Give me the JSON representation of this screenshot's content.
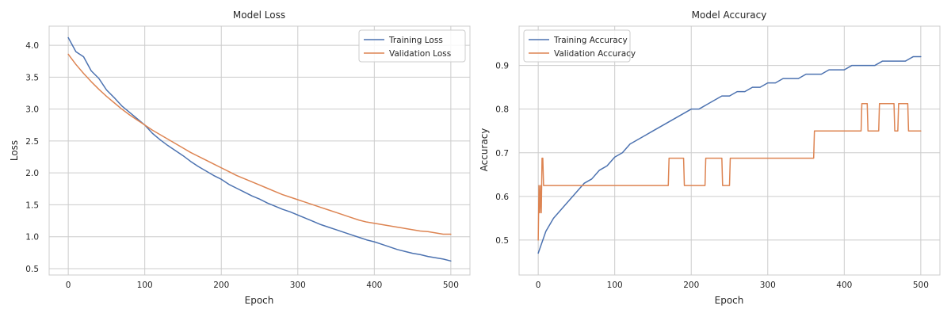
{
  "chart_data": [
    {
      "type": "line",
      "title": "Model Loss",
      "xlabel": "Epoch",
      "ylabel": "Loss",
      "xlim": [
        -25,
        525
      ],
      "ylim": [
        0.4,
        4.3
      ],
      "xticks": [
        0,
        100,
        200,
        300,
        400,
        500
      ],
      "yticks": [
        0.5,
        1.0,
        1.5,
        2.0,
        2.5,
        3.0,
        3.5,
        4.0
      ],
      "xtick_labels": [
        "0",
        "100",
        "200",
        "300",
        "400",
        "500"
      ],
      "ytick_labels": [
        "0.5",
        "1.0",
        "1.5",
        "2.0",
        "2.5",
        "3.0",
        "3.5",
        "4.0"
      ],
      "grid": true,
      "legend_position": "top-right",
      "series": [
        {
          "name": "Training Loss",
          "color": "#4c72b0",
          "x": [
            0,
            10,
            20,
            30,
            40,
            50,
            60,
            70,
            80,
            90,
            100,
            110,
            120,
            130,
            140,
            150,
            160,
            170,
            180,
            190,
            200,
            210,
            220,
            230,
            240,
            250,
            260,
            270,
            280,
            290,
            300,
            310,
            320,
            330,
            340,
            350,
            360,
            370,
            380,
            390,
            400,
            410,
            420,
            430,
            440,
            450,
            460,
            470,
            480,
            490,
            500
          ],
          "y": [
            4.12,
            3.9,
            3.82,
            3.6,
            3.48,
            3.3,
            3.18,
            3.05,
            2.95,
            2.85,
            2.75,
            2.62,
            2.52,
            2.43,
            2.35,
            2.27,
            2.18,
            2.1,
            2.03,
            1.96,
            1.9,
            1.82,
            1.76,
            1.7,
            1.64,
            1.59,
            1.53,
            1.48,
            1.43,
            1.39,
            1.34,
            1.29,
            1.24,
            1.19,
            1.15,
            1.11,
            1.07,
            1.03,
            0.99,
            0.95,
            0.92,
            0.88,
            0.84,
            0.8,
            0.77,
            0.74,
            0.72,
            0.69,
            0.67,
            0.65,
            0.62
          ]
        },
        {
          "name": "Validation Loss",
          "color": "#dd8452",
          "x": [
            0,
            10,
            20,
            30,
            40,
            50,
            60,
            70,
            80,
            90,
            100,
            110,
            120,
            130,
            140,
            150,
            160,
            170,
            180,
            190,
            200,
            210,
            220,
            230,
            240,
            250,
            260,
            270,
            280,
            290,
            300,
            310,
            320,
            330,
            340,
            350,
            360,
            370,
            380,
            390,
            400,
            410,
            420,
            430,
            440,
            450,
            460,
            470,
            480,
            490,
            500
          ],
          "y": [
            3.86,
            3.7,
            3.56,
            3.43,
            3.31,
            3.2,
            3.1,
            3.0,
            2.91,
            2.83,
            2.75,
            2.67,
            2.6,
            2.53,
            2.46,
            2.39,
            2.32,
            2.26,
            2.2,
            2.14,
            2.08,
            2.02,
            1.96,
            1.91,
            1.86,
            1.81,
            1.76,
            1.71,
            1.66,
            1.62,
            1.58,
            1.54,
            1.5,
            1.46,
            1.42,
            1.38,
            1.34,
            1.3,
            1.26,
            1.23,
            1.21,
            1.19,
            1.17,
            1.15,
            1.13,
            1.11,
            1.09,
            1.08,
            1.06,
            1.04,
            1.04
          ]
        }
      ]
    },
    {
      "type": "line",
      "title": "Model Accuracy",
      "xlabel": "Epoch",
      "ylabel": "Accuracy",
      "xlim": [
        -25,
        525
      ],
      "ylim": [
        0.42,
        0.99
      ],
      "xticks": [
        0,
        100,
        200,
        300,
        400,
        500
      ],
      "yticks": [
        0.5,
        0.6,
        0.7,
        0.8,
        0.9
      ],
      "xtick_labels": [
        "0",
        "100",
        "200",
        "300",
        "400",
        "500"
      ],
      "ytick_labels": [
        "0.5",
        "0.6",
        "0.7",
        "0.8",
        "0.9"
      ],
      "grid": true,
      "legend_position": "top-left",
      "series": [
        {
          "name": "Training Accuracy",
          "color": "#4c72b0",
          "x": [
            0,
            10,
            20,
            30,
            40,
            50,
            60,
            70,
            80,
            90,
            100,
            110,
            120,
            130,
            140,
            150,
            160,
            170,
            180,
            190,
            200,
            210,
            220,
            230,
            240,
            250,
            260,
            270,
            280,
            290,
            300,
            310,
            320,
            330,
            340,
            350,
            360,
            370,
            380,
            390,
            400,
            410,
            420,
            430,
            440,
            450,
            460,
            470,
            480,
            490,
            500
          ],
          "y": [
            0.47,
            0.52,
            0.55,
            0.57,
            0.59,
            0.61,
            0.63,
            0.64,
            0.66,
            0.67,
            0.69,
            0.7,
            0.72,
            0.73,
            0.74,
            0.75,
            0.76,
            0.77,
            0.78,
            0.79,
            0.8,
            0.8,
            0.81,
            0.82,
            0.83,
            0.83,
            0.84,
            0.84,
            0.85,
            0.85,
            0.86,
            0.86,
            0.87,
            0.87,
            0.87,
            0.88,
            0.88,
            0.88,
            0.89,
            0.89,
            0.89,
            0.9,
            0.9,
            0.9,
            0.9,
            0.91,
            0.91,
            0.91,
            0.91,
            0.92,
            0.92
          ]
        },
        {
          "name": "Validation Accuracy",
          "color": "#dd8452",
          "x": [
            0,
            1,
            2,
            3,
            4,
            5,
            6,
            7,
            8,
            9,
            10,
            11,
            170,
            171,
            190,
            191,
            218,
            219,
            240,
            241,
            250,
            251,
            360,
            361,
            422,
            423,
            430,
            431,
            445,
            446,
            465,
            466,
            470,
            471,
            483,
            484,
            500
          ],
          "y": [
            0.5,
            0.625,
            0.5625,
            0.625,
            0.5625,
            0.6875,
            0.6875,
            0.625,
            0.625,
            0.625,
            0.625,
            0.625,
            0.625,
            0.6875,
            0.6875,
            0.625,
            0.625,
            0.6875,
            0.6875,
            0.625,
            0.625,
            0.6875,
            0.6875,
            0.75,
            0.75,
            0.8125,
            0.8125,
            0.75,
            0.75,
            0.8125,
            0.8125,
            0.75,
            0.75,
            0.8125,
            0.8125,
            0.75,
            0.75
          ]
        }
      ]
    }
  ]
}
